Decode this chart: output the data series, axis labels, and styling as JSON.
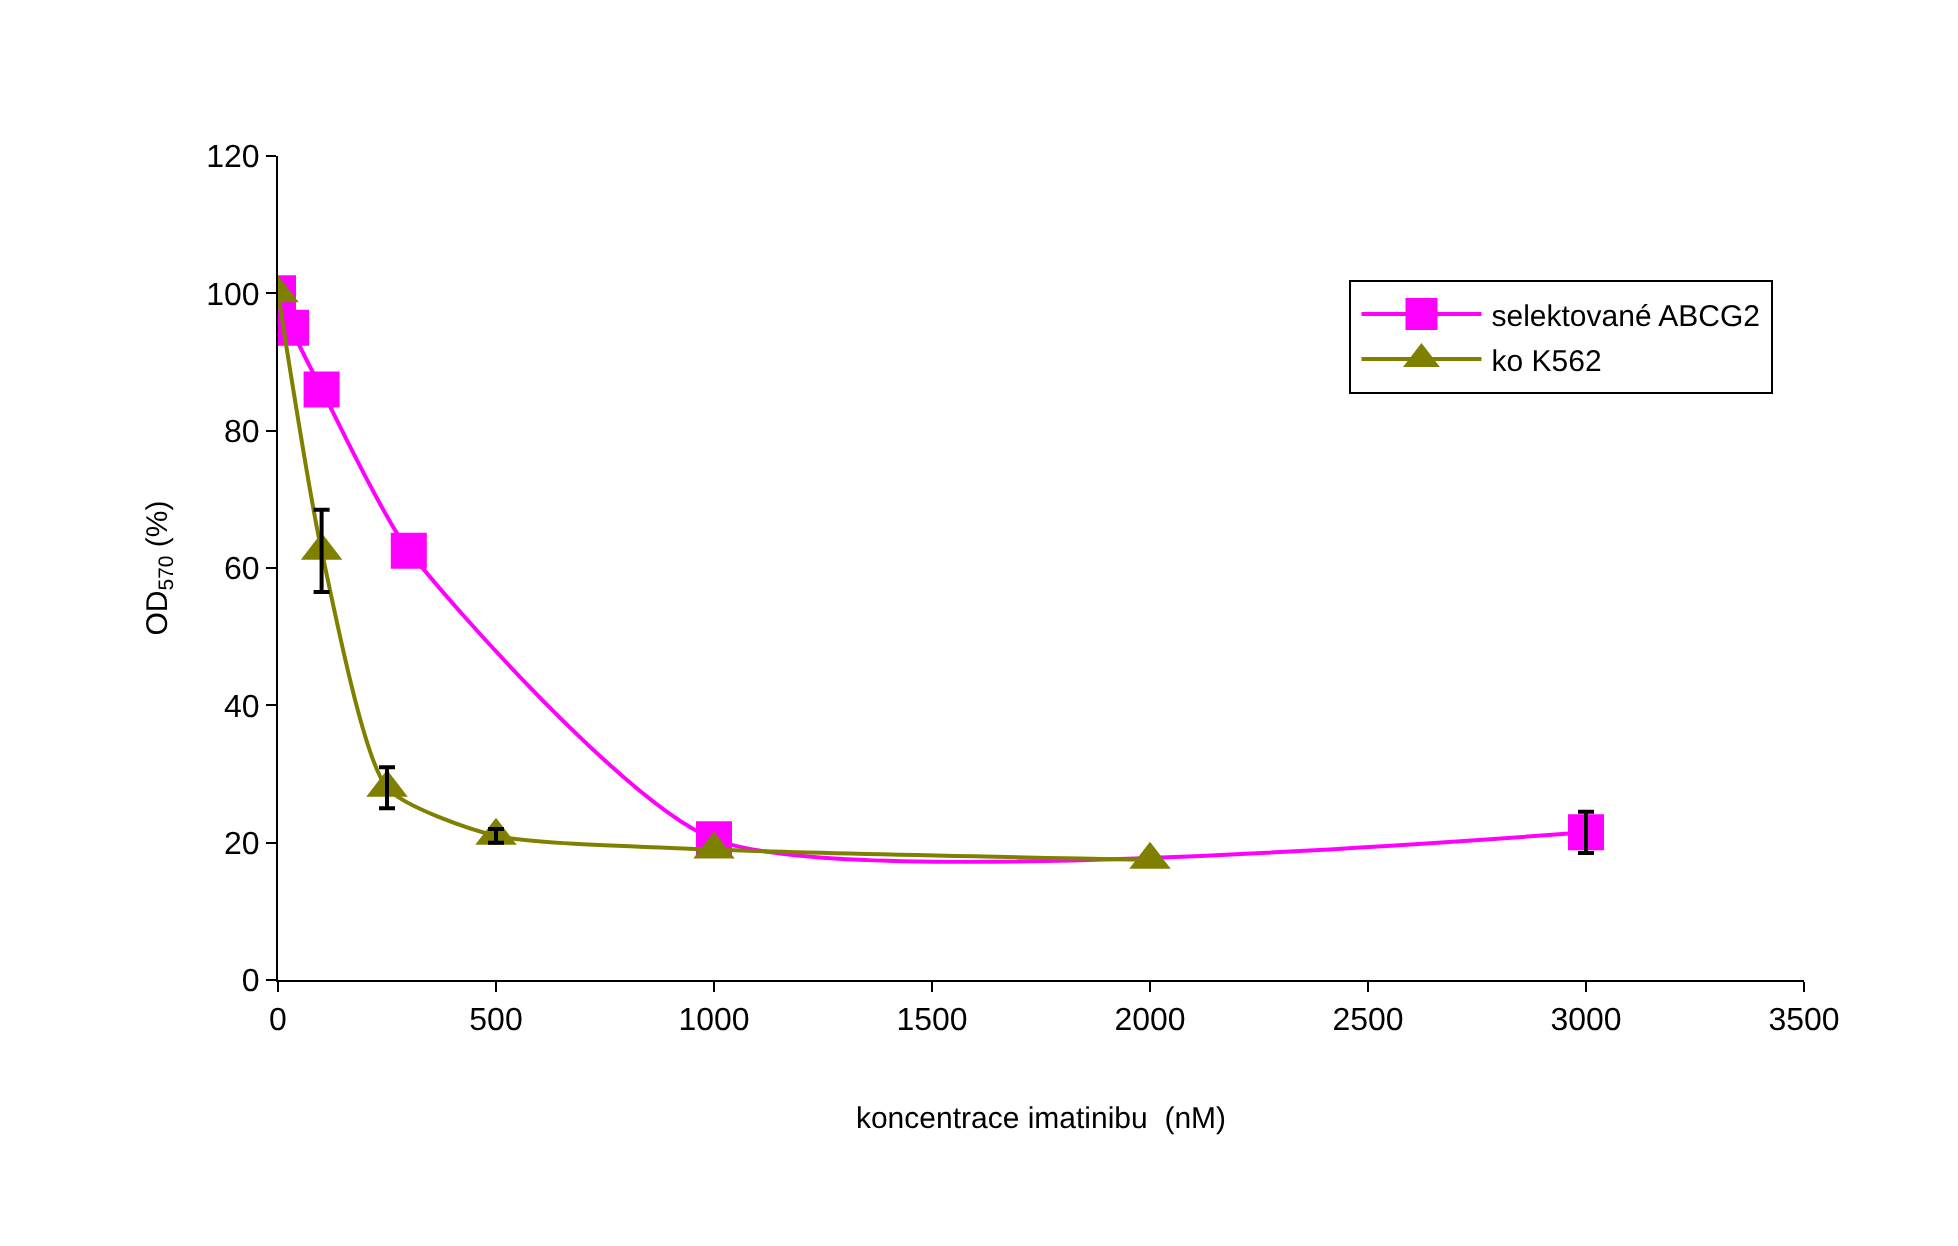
{
  "chart_data": {
    "type": "line",
    "xlabel": "koncentrace imatinibu  (nM)",
    "ylabel": "OD$_{570}$ (%)",
    "xlim": [
      0,
      3500
    ],
    "xticks": [
      0,
      500,
      1000,
      1500,
      2000,
      2500,
      3000,
      3500
    ],
    "ylim": [
      0,
      120
    ],
    "yticks": [
      0,
      20,
      40,
      60,
      80,
      100,
      120
    ],
    "legend": "top right",
    "series": [
      {
        "name": "selektované ABCG2",
        "color": "#ff00ff",
        "marker": "square",
        "x": [
          0,
          30,
          100,
          300,
          1000,
          3000
        ],
        "values": [
          100,
          95,
          86,
          62.5,
          20.5,
          21.5
        ],
        "errors": [
          null,
          null,
          null,
          null,
          null,
          3
        ]
      },
      {
        "name": "ko K562",
        "color": "#808000",
        "marker": "triangle",
        "x": [
          0,
          100,
          250,
          500,
          1000,
          2000
        ],
        "values": [
          100,
          62.5,
          28,
          21,
          19,
          17.5
        ],
        "errors": [
          null,
          6,
          3,
          1,
          null,
          null
        ]
      }
    ]
  }
}
